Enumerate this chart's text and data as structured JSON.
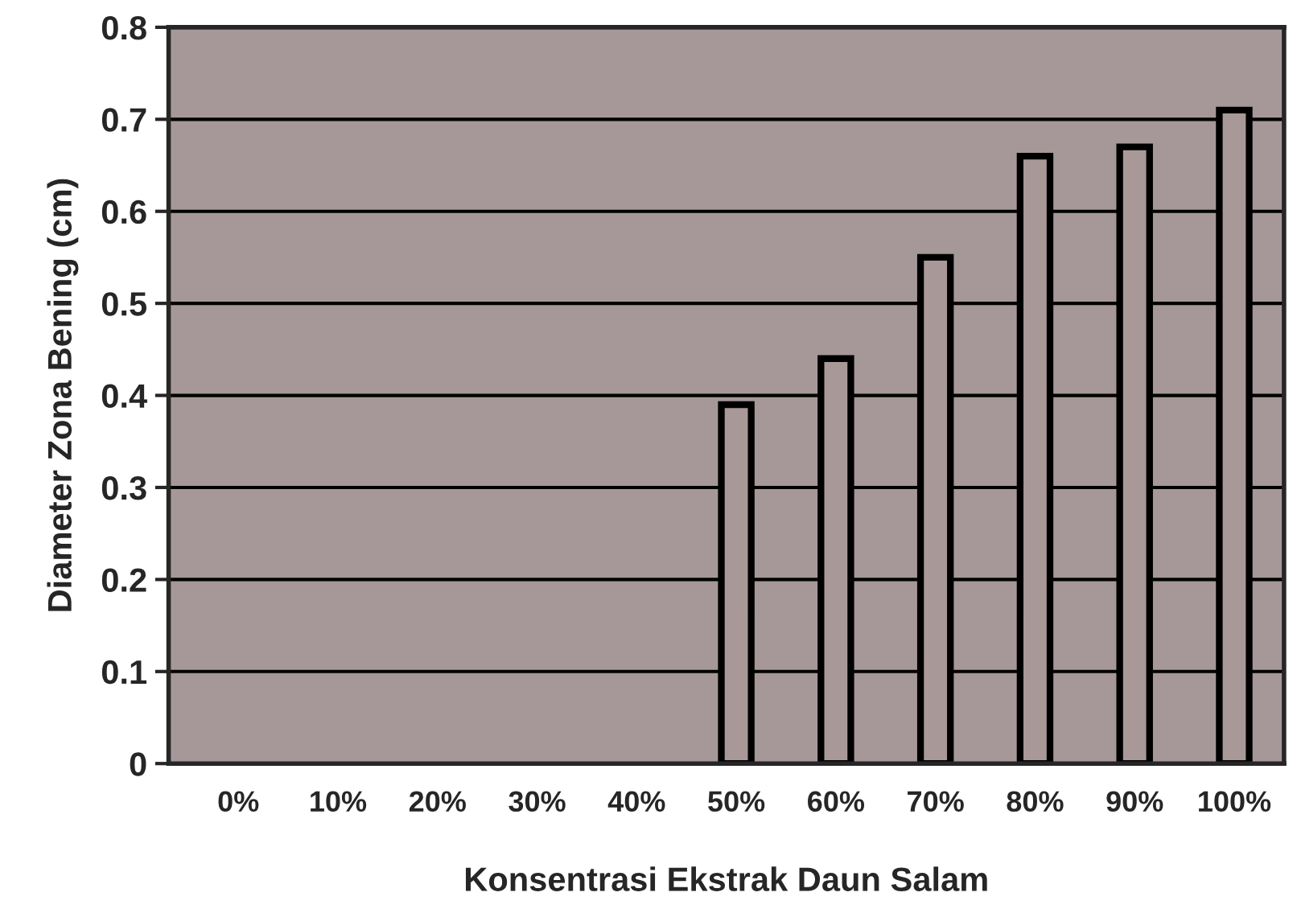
{
  "chart_data": {
    "type": "bar",
    "xlabel": "Konsentrasi Ekstrak Daun Salam",
    "ylabel": "Diameter Zona Bening (cm)",
    "categories": [
      "0%",
      "10%",
      "20%",
      "30%",
      "40%",
      "50%",
      "60%",
      "70%",
      "80%",
      "90%",
      "100%"
    ],
    "values": [
      0,
      0,
      0,
      0,
      0,
      0.39,
      0.44,
      0.55,
      0.66,
      0.67,
      0.71
    ],
    "color": "#a89898",
    "ylim": [
      0,
      0.8
    ],
    "yticks": [
      0,
      0.1,
      0.2,
      0.3,
      0.4,
      0.5,
      0.6,
      0.7,
      0.8
    ],
    "grid": "y"
  }
}
